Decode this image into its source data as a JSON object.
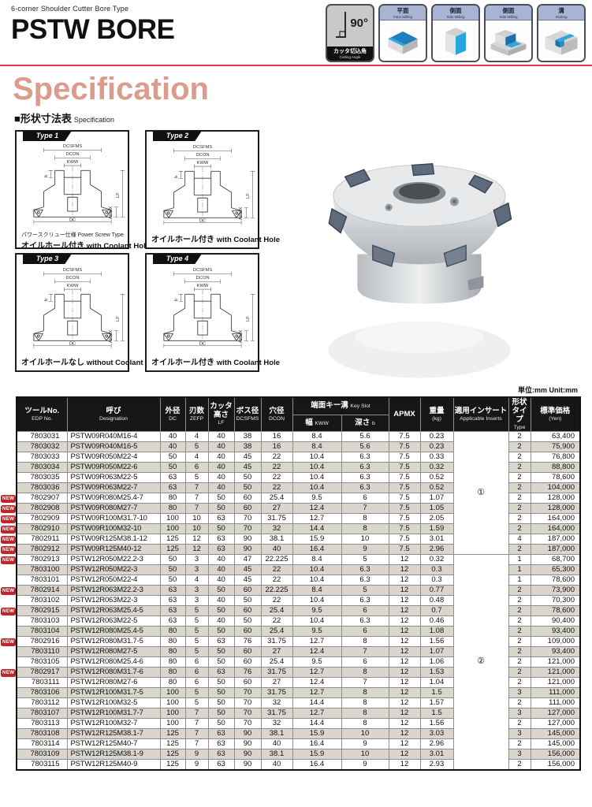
{
  "page": {
    "subtitle": "6-corner Shoulder Cutter  Bore Type",
    "title": "PSTW BORE",
    "section_title": "Specification",
    "spec_label_jp": "■形状寸法表",
    "spec_label_en": "Specification",
    "unit_note": "単位:mm   Unit:mm",
    "accent_color": "#dc9c8c",
    "rule_color": "#e23b3e"
  },
  "capability_icons": {
    "cutting_angle": {
      "value": "90°",
      "label_jp": "カッタ切込角",
      "label_en": "Cutting Angle"
    },
    "face_milling": {
      "label_jp": "平面",
      "label_en": "Face Milling"
    },
    "side_milling": {
      "label_jp": "側面",
      "label_en": "Side Milling"
    },
    "side_milling_2": {
      "label_jp": "側面",
      "label_en": "Side Milling"
    },
    "slotting": {
      "label_jp": "溝",
      "label_en": "Slotting"
    }
  },
  "diagram_dims": {
    "dcsfms": "DCSFMS",
    "dcon": "DCON",
    "kww": "KWW",
    "b": "b",
    "lf": "LF",
    "apmx": "APMX",
    "dc": "DC"
  },
  "type_diagrams": [
    {
      "label": "Type 1",
      "note": "パワースクリュー仕様 Power Screw Type",
      "caption_jp": "オイルホール付き",
      "caption_en": "with Coolant Hole"
    },
    {
      "label": "Type 2",
      "caption_jp": "オイルホール付き",
      "caption_en": "with Coolant Hole"
    },
    {
      "label": "Type 3",
      "caption_jp": "オイルホールなし",
      "caption_en": "without Coolant Hole"
    },
    {
      "label": "Type 4",
      "caption_jp": "オイルホール付き",
      "caption_en": "with Coolant Hole"
    }
  ],
  "table": {
    "new_label": "NEW",
    "headers": {
      "edp_jp": "ツールNo.",
      "edp_en": "EDP No.",
      "designation_jp": "呼び",
      "designation_en": "Designation",
      "dc_jp": "外径",
      "dc_en": "DC",
      "zefp_jp": "刃数",
      "zefp_en": "ZEFP",
      "lf_jp": "カッタ高さ",
      "lf_en": "LF",
      "dcsfms_jp": "ボス径",
      "dcsfms_en": "DCSFMS",
      "dcon_jp": "穴径",
      "dcon_en": "DCON",
      "keyslot_jp": "端面キー溝",
      "keyslot_en": "Key Slot",
      "kww_jp": "幅",
      "kww_en": "KWW",
      "b_jp": "深さ",
      "b_en": "b",
      "apmx": "APMX",
      "weight_jp": "重量",
      "weight_en": "(kg)",
      "inserts_jp": "適用インサート",
      "inserts_en": "Applicable Inserts",
      "type_jp": "形状タイプ",
      "type_en": "Type",
      "price_jp": "標準価格",
      "price_en": "(Yen)"
    },
    "insert_groups": [
      {
        "symbol": "①",
        "span": 12
      },
      {
        "symbol": "②",
        "span": 21
      }
    ],
    "rows": [
      {
        "new": false,
        "edp": "7803031",
        "name": "PSTW09R040M16-4",
        "dc": "40",
        "zefp": "4",
        "lf": "40",
        "dcsfms": "38",
        "dcon": "16",
        "kww": "8.4",
        "b": "5.6",
        "apmx": "7.5",
        "kg": "0.23",
        "type": "2",
        "price": "63,400"
      },
      {
        "new": false,
        "edp": "7803032",
        "name": "PSTW09R040M16-5",
        "dc": "40",
        "zefp": "5",
        "lf": "40",
        "dcsfms": "38",
        "dcon": "16",
        "kww": "8.4",
        "b": "5.6",
        "apmx": "7.5",
        "kg": "0.23",
        "type": "2",
        "price": "75,900"
      },
      {
        "new": false,
        "edp": "7803033",
        "name": "PSTW09R050M22-4",
        "dc": "50",
        "zefp": "4",
        "lf": "40",
        "dcsfms": "45",
        "dcon": "22",
        "kww": "10.4",
        "b": "6.3",
        "apmx": "7.5",
        "kg": "0.33",
        "type": "2",
        "price": "76,800"
      },
      {
        "new": false,
        "edp": "7803034",
        "name": "PSTW09R050M22-6",
        "dc": "50",
        "zefp": "6",
        "lf": "40",
        "dcsfms": "45",
        "dcon": "22",
        "kww": "10.4",
        "b": "6.3",
        "apmx": "7.5",
        "kg": "0.32",
        "type": "2",
        "price": "88,800"
      },
      {
        "new": false,
        "edp": "7803035",
        "name": "PSTW09R063M22-5",
        "dc": "63",
        "zefp": "5",
        "lf": "40",
        "dcsfms": "50",
        "dcon": "22",
        "kww": "10.4",
        "b": "6.3",
        "apmx": "7.5",
        "kg": "0.52",
        "type": "2",
        "price": "78,600"
      },
      {
        "new": false,
        "edp": "7803036",
        "name": "PSTW09R063M22-7",
        "dc": "63",
        "zefp": "7",
        "lf": "40",
        "dcsfms": "50",
        "dcon": "22",
        "kww": "10.4",
        "b": "6.3",
        "apmx": "7.5",
        "kg": "0.52",
        "type": "2",
        "price": "104,000"
      },
      {
        "new": true,
        "edp": "7802907",
        "name": "PSTW09R080M25.4-7",
        "dc": "80",
        "zefp": "7",
        "lf": "50",
        "dcsfms": "60",
        "dcon": "25.4",
        "kww": "9.5",
        "b": "6",
        "apmx": "7.5",
        "kg": "1.07",
        "type": "2",
        "price": "128,000"
      },
      {
        "new": true,
        "edp": "7802908",
        "name": "PSTW09R080M27-7",
        "dc": "80",
        "zefp": "7",
        "lf": "50",
        "dcsfms": "60",
        "dcon": "27",
        "kww": "12.4",
        "b": "7",
        "apmx": "7.5",
        "kg": "1.05",
        "type": "2",
        "price": "128,000"
      },
      {
        "new": true,
        "edp": "7802909",
        "name": "PSTW09R100M31.7-10",
        "dc": "100",
        "zefp": "10",
        "lf": "63",
        "dcsfms": "70",
        "dcon": "31.75",
        "kww": "12.7",
        "b": "8",
        "apmx": "7.5",
        "kg": "2.05",
        "type": "2",
        "price": "164,000"
      },
      {
        "new": true,
        "edp": "7802910",
        "name": "PSTW09R100M32-10",
        "dc": "100",
        "zefp": "10",
        "lf": "50",
        "dcsfms": "70",
        "dcon": "32",
        "kww": "14.4",
        "b": "8",
        "apmx": "7.5",
        "kg": "1.59",
        "type": "2",
        "price": "164,000"
      },
      {
        "new": true,
        "edp": "7802911",
        "name": "PSTW09R125M38.1-12",
        "dc": "125",
        "zefp": "12",
        "lf": "63",
        "dcsfms": "90",
        "dcon": "38.1",
        "kww": "15.9",
        "b": "10",
        "apmx": "7.5",
        "kg": "3.01",
        "type": "4",
        "price": "187,000"
      },
      {
        "new": true,
        "edp": "7802912",
        "name": "PSTW09R125M40-12",
        "dc": "125",
        "zefp": "12",
        "lf": "63",
        "dcsfms": "90",
        "dcon": "40",
        "kww": "16.4",
        "b": "9",
        "apmx": "7.5",
        "kg": "2.96",
        "type": "2",
        "price": "187,000"
      },
      {
        "new": true,
        "edp": "7802913",
        "name": "PSTW12R050M22.2-3",
        "dc": "50",
        "zefp": "3",
        "lf": "40",
        "dcsfms": "47",
        "dcon": "22.225",
        "kww": "8.4",
        "b": "5",
        "apmx": "12",
        "kg": "0.32",
        "type": "1",
        "price": "68,700"
      },
      {
        "new": false,
        "edp": "7803100",
        "name": "PSTW12R050M22-3",
        "dc": "50",
        "zefp": "3",
        "lf": "40",
        "dcsfms": "45",
        "dcon": "22",
        "kww": "10.4",
        "b": "6.3",
        "apmx": "12",
        "kg": "0.3",
        "type": "1",
        "price": "65,300"
      },
      {
        "new": false,
        "edp": "7803101",
        "name": "PSTW12R050M22-4",
        "dc": "50",
        "zefp": "4",
        "lf": "40",
        "dcsfms": "45",
        "dcon": "22",
        "kww": "10.4",
        "b": "6.3",
        "apmx": "12",
        "kg": "0.3",
        "type": "1",
        "price": "78,600"
      },
      {
        "new": true,
        "edp": "7802914",
        "name": "PSTW12R063M22.2-3",
        "dc": "63",
        "zefp": "3",
        "lf": "50",
        "dcsfms": "60",
        "dcon": "22.225",
        "kww": "8.4",
        "b": "5",
        "apmx": "12",
        "kg": "0.77",
        "type": "2",
        "price": "73,900"
      },
      {
        "new": false,
        "edp": "7803102",
        "name": "PSTW12R063M22-3",
        "dc": "63",
        "zefp": "3",
        "lf": "40",
        "dcsfms": "50",
        "dcon": "22",
        "kww": "10.4",
        "b": "6.3",
        "apmx": "12",
        "kg": "0.48",
        "type": "2",
        "price": "70,300"
      },
      {
        "new": true,
        "edp": "7802915",
        "name": "PSTW12R063M25.4-5",
        "dc": "63",
        "zefp": "5",
        "lf": "50",
        "dcsfms": "60",
        "dcon": "25.4",
        "kww": "9.5",
        "b": "6",
        "apmx": "12",
        "kg": "0.7",
        "type": "2",
        "price": "78,600"
      },
      {
        "new": false,
        "edp": "7803103",
        "name": "PSTW12R063M22-5",
        "dc": "63",
        "zefp": "5",
        "lf": "40",
        "dcsfms": "50",
        "dcon": "22",
        "kww": "10.4",
        "b": "6.3",
        "apmx": "12",
        "kg": "0.46",
        "type": "2",
        "price": "90,400"
      },
      {
        "new": false,
        "edp": "7803104",
        "name": "PSTW12R080M25.4-5",
        "dc": "80",
        "zefp": "5",
        "lf": "50",
        "dcsfms": "60",
        "dcon": "25.4",
        "kww": "9.5",
        "b": "6",
        "apmx": "12",
        "kg": "1.08",
        "type": "2",
        "price": "93,400"
      },
      {
        "new": true,
        "edp": "7802916",
        "name": "PSTW12R080M31.7-5",
        "dc": "80",
        "zefp": "5",
        "lf": "63",
        "dcsfms": "76",
        "dcon": "31.75",
        "kww": "12.7",
        "b": "8",
        "apmx": "12",
        "kg": "1.56",
        "type": "2",
        "price": "109,000"
      },
      {
        "new": false,
        "edp": "7803110",
        "name": "PSTW12R080M27-5",
        "dc": "80",
        "zefp": "5",
        "lf": "50",
        "dcsfms": "60",
        "dcon": "27",
        "kww": "12.4",
        "b": "7",
        "apmx": "12",
        "kg": "1.07",
        "type": "2",
        "price": "93,400"
      },
      {
        "new": false,
        "edp": "7803105",
        "name": "PSTW12R080M25.4-6",
        "dc": "80",
        "zefp": "6",
        "lf": "50",
        "dcsfms": "60",
        "dcon": "25.4",
        "kww": "9.5",
        "b": "6",
        "apmx": "12",
        "kg": "1.06",
        "type": "2",
        "price": "121,000"
      },
      {
        "new": true,
        "edp": "7802917",
        "name": "PSTW12R080M31.7-6",
        "dc": "80",
        "zefp": "6",
        "lf": "63",
        "dcsfms": "76",
        "dcon": "31.75",
        "kww": "12.7",
        "b": "8",
        "apmx": "12",
        "kg": "1.53",
        "type": "2",
        "price": "121,000"
      },
      {
        "new": false,
        "edp": "7803111",
        "name": "PSTW12R080M27-6",
        "dc": "80",
        "zefp": "6",
        "lf": "50",
        "dcsfms": "60",
        "dcon": "27",
        "kww": "12.4",
        "b": "7",
        "apmx": "12",
        "kg": "1.04",
        "type": "2",
        "price": "121,000"
      },
      {
        "new": false,
        "edp": "7803106",
        "name": "PSTW12R100M31.7-5",
        "dc": "100",
        "zefp": "5",
        "lf": "50",
        "dcsfms": "70",
        "dcon": "31.75",
        "kww": "12.7",
        "b": "8",
        "apmx": "12",
        "kg": "1.5",
        "type": "3",
        "price": "111,000"
      },
      {
        "new": false,
        "edp": "7803112",
        "name": "PSTW12R100M32-5",
        "dc": "100",
        "zefp": "5",
        "lf": "50",
        "dcsfms": "70",
        "dcon": "32",
        "kww": "14.4",
        "b": "8",
        "apmx": "12",
        "kg": "1.57",
        "type": "2",
        "price": "111,000"
      },
      {
        "new": false,
        "edp": "7803107",
        "name": "PSTW12R100M31.7-7",
        "dc": "100",
        "zefp": "7",
        "lf": "50",
        "dcsfms": "70",
        "dcon": "31.75",
        "kww": "12.7",
        "b": "8",
        "apmx": "12",
        "kg": "1.5",
        "type": "3",
        "price": "127,000"
      },
      {
        "new": false,
        "edp": "7803113",
        "name": "PSTW12R100M32-7",
        "dc": "100",
        "zefp": "7",
        "lf": "50",
        "dcsfms": "70",
        "dcon": "32",
        "kww": "14.4",
        "b": "8",
        "apmx": "12",
        "kg": "1.56",
        "type": "2",
        "price": "127,000"
      },
      {
        "new": false,
        "edp": "7803108",
        "name": "PSTW12R125M38.1-7",
        "dc": "125",
        "zefp": "7",
        "lf": "63",
        "dcsfms": "90",
        "dcon": "38.1",
        "kww": "15.9",
        "b": "10",
        "apmx": "12",
        "kg": "3.03",
        "type": "3",
        "price": "145,000"
      },
      {
        "new": false,
        "edp": "7803114",
        "name": "PSTW12R125M40-7",
        "dc": "125",
        "zefp": "7",
        "lf": "63",
        "dcsfms": "90",
        "dcon": "40",
        "kww": "16.4",
        "b": "9",
        "apmx": "12",
        "kg": "2.96",
        "type": "2",
        "price": "145,000"
      },
      {
        "new": false,
        "edp": "7803109",
        "name": "PSTW12R125M38.1-9",
        "dc": "125",
        "zefp": "9",
        "lf": "63",
        "dcsfms": "90",
        "dcon": "38.1",
        "kww": "15.9",
        "b": "10",
        "apmx": "12",
        "kg": "3.01",
        "type": "3",
        "price": "156,000"
      },
      {
        "new": false,
        "edp": "7803115",
        "name": "PSTW12R125M40-9",
        "dc": "125",
        "zefp": "9",
        "lf": "63",
        "dcsfms": "90",
        "dcon": "40",
        "kww": "16.4",
        "b": "9",
        "apmx": "12",
        "kg": "2.93",
        "type": "2",
        "price": "156,000"
      }
    ]
  }
}
